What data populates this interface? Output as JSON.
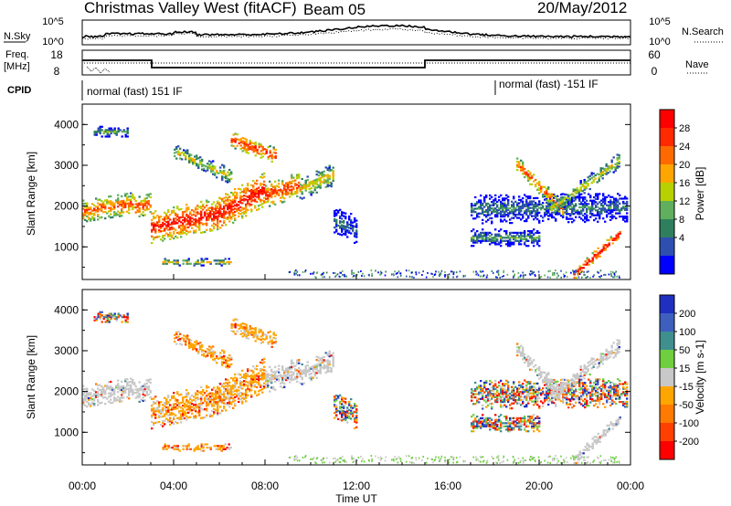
{
  "header": {
    "title": "Christmas Valley West (fitACF)",
    "beam": "Beam 05",
    "date": "20/May/2012"
  },
  "top_panels": {
    "nsky_label": "N.Sky",
    "nsearch_label": "N.Search",
    "noise_ticks": [
      "10^5",
      "10^0"
    ],
    "freq_label_line1": "Freq.",
    "freq_label_line2": "[MHz]",
    "freq_ticks": [
      "18",
      "8"
    ],
    "nave_label": "Nave",
    "nave_ticks": [
      "60",
      "0"
    ],
    "cpid_label": "CPID",
    "cpid_1": "normal (fast) 151 IF",
    "cpid_2": "normal (fast) -151 IF"
  },
  "chart_data": [
    {
      "type": "heatmap",
      "name": "power",
      "xlabel": "Time UT",
      "ylabel": "Slant Range [km]",
      "xlim_hours": [
        0,
        24
      ],
      "x_ticks": [
        "00:00",
        "04:00",
        "08:00",
        "12:00",
        "16:00",
        "20:00",
        "00:00"
      ],
      "ylim": [
        200,
        4500
      ],
      "y_ticks": [
        1000,
        2000,
        3000,
        4000
      ],
      "colorbar": {
        "label": "Power [dB]",
        "ticks": [
          "4",
          "8",
          "12",
          "16",
          "20",
          "24",
          "28"
        ],
        "colors": [
          "#0000ff",
          "#2f4fb0",
          "#2f7f5f",
          "#5faf5f",
          "#b7d000",
          "#ffa500",
          "#ff6a00",
          "#ff2a00",
          "#ff0000"
        ]
      }
    },
    {
      "type": "heatmap",
      "name": "velocity",
      "xlabel": "Time UT",
      "ylabel": "Slant Range [km]",
      "xlim_hours": [
        0,
        24
      ],
      "x_ticks": [
        "00:00",
        "04:00",
        "08:00",
        "12:00",
        "16:00",
        "20:00",
        "00:00"
      ],
      "ylim": [
        200,
        4500
      ],
      "y_ticks": [
        1000,
        2000,
        3000,
        4000
      ],
      "colorbar": {
        "label": "Velocity [m s-1]",
        "ticks": [
          "200",
          "100",
          "50",
          "15",
          "-15",
          "-50",
          "-100",
          "-200"
        ],
        "colors": [
          "#1f2fbf",
          "#3f5fbf",
          "#3f8f8f",
          "#6fcf3f",
          "#c8c8c8",
          "#ffa500",
          "#ff7a00",
          "#ff4000",
          "#ff0000"
        ]
      }
    }
  ]
}
